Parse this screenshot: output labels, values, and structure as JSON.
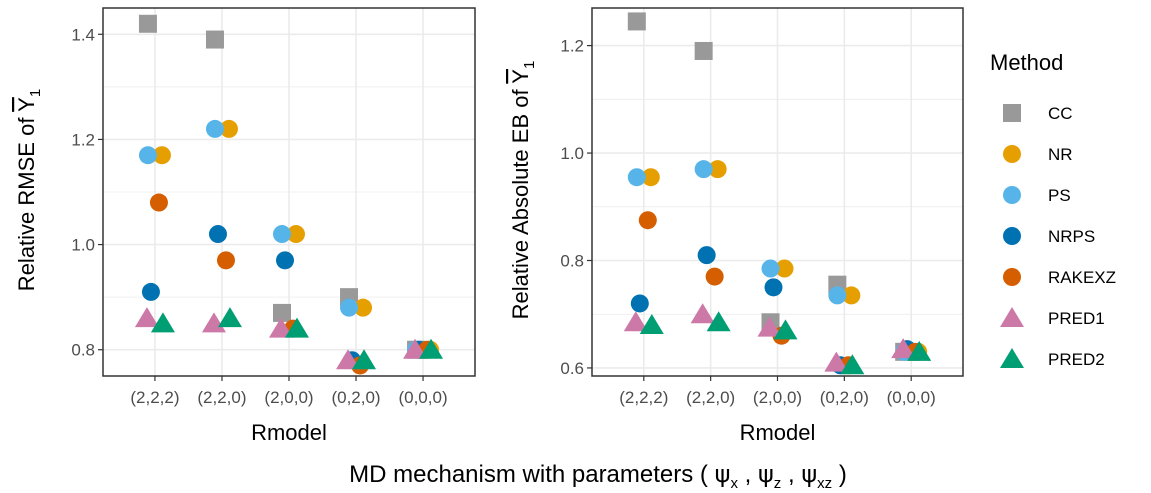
{
  "chart_data": [
    {
      "type": "scatter",
      "xlabel": "Rmodel",
      "ylabel": {
        "prefix": "Relative RMSE of ",
        "symbol": "Y",
        "sub": "1"
      },
      "categories": [
        "(2,2,2)",
        "(2,2,0)",
        "(2,0,0)",
        "(0,2,0)",
        "(0,0,0)"
      ],
      "ylim": [
        0.75,
        1.45
      ],
      "yticks": [
        0.8,
        1.0,
        1.2,
        1.4
      ],
      "ytick_labels": [
        "0.8",
        "1.0",
        "1.2",
        "1.4"
      ],
      "grid": true,
      "series": [
        {
          "name": "CC",
          "values": [
            1.42,
            1.39,
            0.87,
            0.9,
            0.8
          ]
        },
        {
          "name": "NR",
          "values": [
            1.17,
            1.22,
            1.02,
            0.88,
            0.8
          ]
        },
        {
          "name": "PS",
          "values": [
            1.17,
            1.22,
            1.02,
            0.88,
            0.8
          ]
        },
        {
          "name": "NRPS",
          "values": [
            0.91,
            1.02,
            0.97,
            0.78,
            0.8
          ]
        },
        {
          "name": "RAKEXZ",
          "values": [
            1.08,
            0.97,
            0.84,
            0.77,
            0.8
          ]
        },
        {
          "name": "PRED1",
          "values": [
            0.86,
            0.85,
            0.84,
            0.78,
            0.8
          ]
        },
        {
          "name": "PRED2",
          "values": [
            0.85,
            0.86,
            0.84,
            0.78,
            0.8
          ]
        }
      ]
    },
    {
      "type": "scatter",
      "xlabel": "Rmodel",
      "ylabel": {
        "prefix": "Relative Absolute EB of ",
        "symbol": "Y",
        "sub": "1"
      },
      "categories": [
        "(2,2,2)",
        "(2,2,0)",
        "(2,0,0)",
        "(0,2,0)",
        "(0,0,0)"
      ],
      "ylim": [
        0.585,
        1.27
      ],
      "yticks": [
        0.6,
        0.8,
        1.0,
        1.2
      ],
      "ytick_labels": [
        "0.6",
        "0.8",
        "1.0",
        "1.2"
      ],
      "grid": true,
      "series": [
        {
          "name": "CC",
          "values": [
            1.245,
            1.19,
            0.685,
            0.755,
            0.63
          ]
        },
        {
          "name": "NR",
          "values": [
            0.955,
            0.97,
            0.785,
            0.735,
            0.63
          ]
        },
        {
          "name": "PS",
          "values": [
            0.955,
            0.97,
            0.785,
            0.735,
            0.63
          ]
        },
        {
          "name": "NRPS",
          "values": [
            0.72,
            0.81,
            0.75,
            0.605,
            0.635
          ]
        },
        {
          "name": "RAKEXZ",
          "values": [
            0.875,
            0.77,
            0.66,
            0.605,
            0.63
          ]
        },
        {
          "name": "PRED1",
          "values": [
            0.685,
            0.7,
            0.675,
            0.61,
            0.635
          ]
        },
        {
          "name": "PRED2",
          "values": [
            0.68,
            0.685,
            0.67,
            0.605,
            0.63
          ]
        }
      ]
    }
  ],
  "legend": {
    "title": "Method",
    "placement": "right",
    "items": [
      {
        "name": "CC",
        "color": "#999999",
        "shape": "square"
      },
      {
        "name": "NR",
        "color": "#E69F00",
        "shape": "circle"
      },
      {
        "name": "PS",
        "color": "#56B4E9",
        "shape": "circle"
      },
      {
        "name": "NRPS",
        "color": "#0072B2",
        "shape": "circle"
      },
      {
        "name": "RAKEXZ",
        "color": "#D55E00",
        "shape": "circle"
      },
      {
        "name": "PRED1",
        "color": "#CC79A7",
        "shape": "triangle"
      },
      {
        "name": "PRED2",
        "color": "#009E73",
        "shape": "triangle"
      }
    ]
  },
  "caption": {
    "prefix": "MD mechanism with parameters ( ",
    "psi": "ψ",
    "subs": [
      "x",
      "z",
      "xz"
    ],
    "sep": " , ",
    "suffix": " )"
  }
}
